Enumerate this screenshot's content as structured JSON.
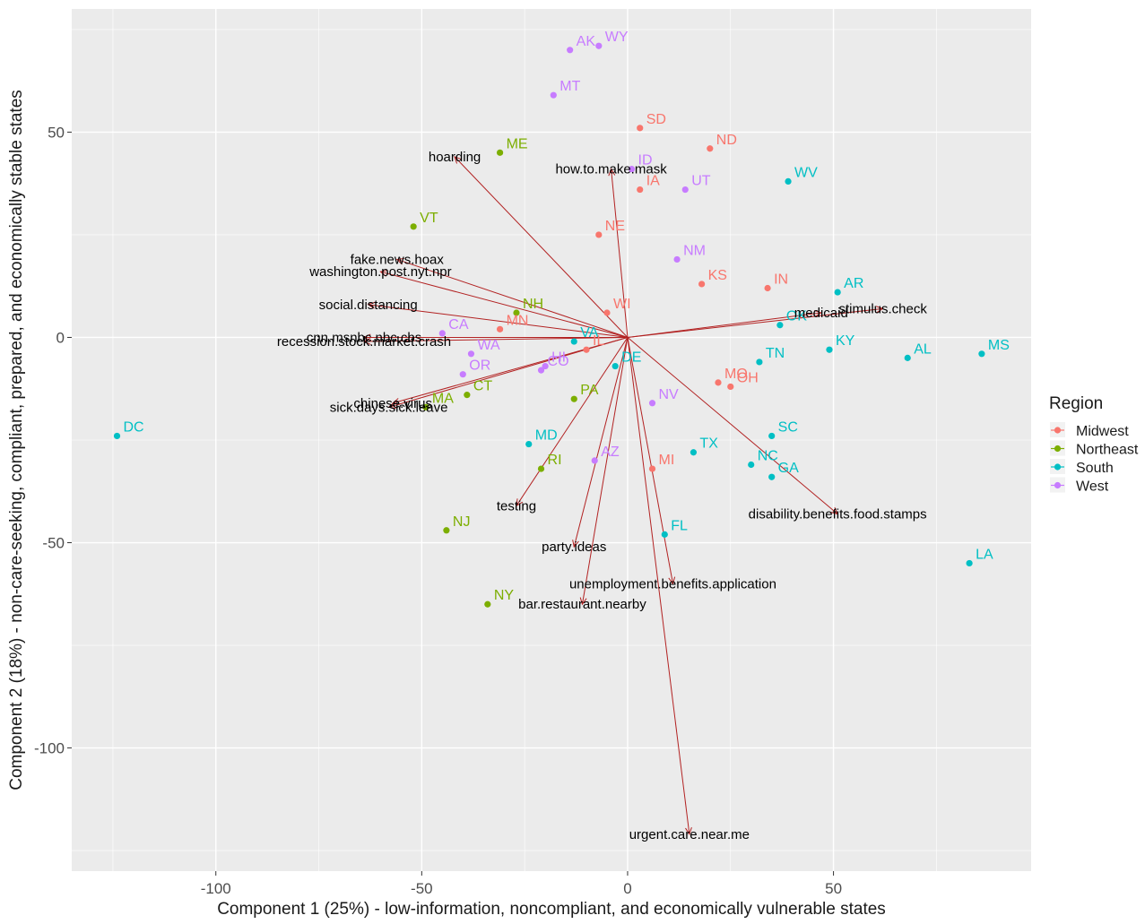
{
  "chart_data": {
    "type": "scatter",
    "subtype": "pca-biplot",
    "xlabel": "Component 1 (25%) - low-information, noncompliant, and economically vulnerable states",
    "ylabel": "Component 2 (18%) - non-care-seeking, compliant, prepared, and economically stable states",
    "xlim": [
      -135,
      98
    ],
    "ylim": [
      -130,
      80
    ],
    "x_ticks": [
      -100,
      -50,
      0,
      50
    ],
    "y_ticks": [
      -100,
      -50,
      0,
      50
    ],
    "grid": true,
    "legend": {
      "title": "Region",
      "position": "right",
      "entries": [
        "Midwest",
        "Northeast",
        "South",
        "West"
      ]
    },
    "colors": {
      "Midwest": "#F8766D",
      "Northeast": "#7CAE00",
      "South": "#00BFC4",
      "West": "#C77CFF",
      "arrow": "#B22222",
      "panel": "#EBEBEB",
      "grid_major": "#FFFFFF"
    },
    "points": [
      {
        "label": "DC",
        "region": "South",
        "x": -124,
        "y": -24
      },
      {
        "label": "MS",
        "region": "South",
        "x": 86,
        "y": -4
      },
      {
        "label": "AL",
        "region": "South",
        "x": 68,
        "y": -5
      },
      {
        "label": "LA",
        "region": "South",
        "x": 83,
        "y": -55
      },
      {
        "label": "KY",
        "region": "South",
        "x": 49,
        "y": -3
      },
      {
        "label": "TN",
        "region": "South",
        "x": 32,
        "y": -6
      },
      {
        "label": "AR",
        "region": "South",
        "x": 51,
        "y": 11
      },
      {
        "label": "OK",
        "region": "South",
        "x": 37,
        "y": 3
      },
      {
        "label": "WV",
        "region": "South",
        "x": 39,
        "y": 38
      },
      {
        "label": "SC",
        "region": "South",
        "x": 35,
        "y": -24
      },
      {
        "label": "NC",
        "region": "South",
        "x": 30,
        "y": -31
      },
      {
        "label": "GA",
        "region": "South",
        "x": 35,
        "y": -34
      },
      {
        "label": "TX",
        "region": "South",
        "x": 16,
        "y": -28
      },
      {
        "label": "FL",
        "region": "South",
        "x": 9,
        "y": -48
      },
      {
        "label": "VA",
        "region": "South",
        "x": -13,
        "y": -1
      },
      {
        "label": "DE",
        "region": "South",
        "x": -3,
        "y": -7
      },
      {
        "label": "MD",
        "region": "South",
        "x": -24,
        "y": -26
      },
      {
        "label": "ND",
        "region": "Midwest",
        "x": 20,
        "y": 46
      },
      {
        "label": "SD",
        "region": "Midwest",
        "x": 3,
        "y": 51
      },
      {
        "label": "IA",
        "region": "Midwest",
        "x": 3,
        "y": 36
      },
      {
        "label": "NE",
        "region": "Midwest",
        "x": -7,
        "y": 25
      },
      {
        "label": "KS",
        "region": "Midwest",
        "x": 18,
        "y": 13
      },
      {
        "label": "IN",
        "region": "Midwest",
        "x": 34,
        "y": 12
      },
      {
        "label": "MO",
        "region": "Midwest",
        "x": 22,
        "y": -11
      },
      {
        "label": "OH",
        "region": "Midwest",
        "x": 25,
        "y": -12
      },
      {
        "label": "MI",
        "region": "Midwest",
        "x": 6,
        "y": -32
      },
      {
        "label": "WI",
        "region": "Midwest",
        "x": -5,
        "y": 6
      },
      {
        "label": "IL",
        "region": "Midwest",
        "x": -10,
        "y": -3
      },
      {
        "label": "MN",
        "region": "Midwest",
        "x": -31,
        "y": 2
      },
      {
        "label": "ME",
        "region": "Northeast",
        "x": -31,
        "y": 45
      },
      {
        "label": "VT",
        "region": "Northeast",
        "x": -52,
        "y": 27
      },
      {
        "label": "NH",
        "region": "Northeast",
        "x": -27,
        "y": 6
      },
      {
        "label": "PA",
        "region": "Northeast",
        "x": -13,
        "y": -15
      },
      {
        "label": "MA",
        "region": "Northeast",
        "x": -49,
        "y": -17
      },
      {
        "label": "CT",
        "region": "Northeast",
        "x": -39,
        "y": -14
      },
      {
        "label": "RI",
        "region": "Northeast",
        "x": -21,
        "y": -32
      },
      {
        "label": "NJ",
        "region": "Northeast",
        "x": -44,
        "y": -47
      },
      {
        "label": "NY",
        "region": "Northeast",
        "x": -34,
        "y": -65
      },
      {
        "label": "WY",
        "region": "West",
        "x": -7,
        "y": 71
      },
      {
        "label": "AK",
        "region": "West",
        "x": -14,
        "y": 70
      },
      {
        "label": "MT",
        "region": "West",
        "x": -18,
        "y": 59
      },
      {
        "label": "ID",
        "region": "West",
        "x": 1,
        "y": 41
      },
      {
        "label": "UT",
        "region": "West",
        "x": 14,
        "y": 36
      },
      {
        "label": "NM",
        "region": "West",
        "x": 12,
        "y": 19
      },
      {
        "label": "CA",
        "region": "West",
        "x": -45,
        "y": 1
      },
      {
        "label": "WA",
        "region": "West",
        "x": -38,
        "y": -4
      },
      {
        "label": "OR",
        "region": "West",
        "x": -40,
        "y": -9
      },
      {
        "label": "CO",
        "region": "West",
        "x": -21,
        "y": -8
      },
      {
        "label": "HI",
        "region": "West",
        "x": -20,
        "y": -7
      },
      {
        "label": "AZ",
        "region": "West",
        "x": -8,
        "y": -30
      },
      {
        "label": "NV",
        "region": "West",
        "x": 6,
        "y": -16
      }
    ],
    "loadings": [
      {
        "label": "hoarding",
        "x": -42,
        "y": 44
      },
      {
        "label": "how.to.make.mask",
        "x": -4,
        "y": 41
      },
      {
        "label": "fake.news.hoax",
        "x": -56,
        "y": 19
      },
      {
        "label": "washington.post.nyt.npr",
        "x": -60,
        "y": 16
      },
      {
        "label": "social.distancing",
        "x": -63,
        "y": 8
      },
      {
        "label": "cnn.msnbc.nbc.cbs",
        "x": -64,
        "y": 0
      },
      {
        "label": "recession.stock.market.crash",
        "x": -64,
        "y": -1
      },
      {
        "label": "chinese.virus",
        "x": -57,
        "y": -16
      },
      {
        "label": "sick.days.sick.leave",
        "x": -58,
        "y": -17
      },
      {
        "label": "testing",
        "x": -27,
        "y": -41
      },
      {
        "label": "party.ideas",
        "x": -13,
        "y": -51
      },
      {
        "label": "bar.restaurant.nearby",
        "x": -11,
        "y": -65
      },
      {
        "label": "unemployment.benefits.application",
        "x": 11,
        "y": -60
      },
      {
        "label": "urgent.care.near.me",
        "x": 15,
        "y": -121
      },
      {
        "label": "disability.benefits.food.stamps",
        "x": 51,
        "y": -43
      },
      {
        "label": "medicaid",
        "x": 47,
        "y": 6
      },
      {
        "label": "stimulus.check",
        "x": 62,
        "y": 7
      }
    ]
  }
}
